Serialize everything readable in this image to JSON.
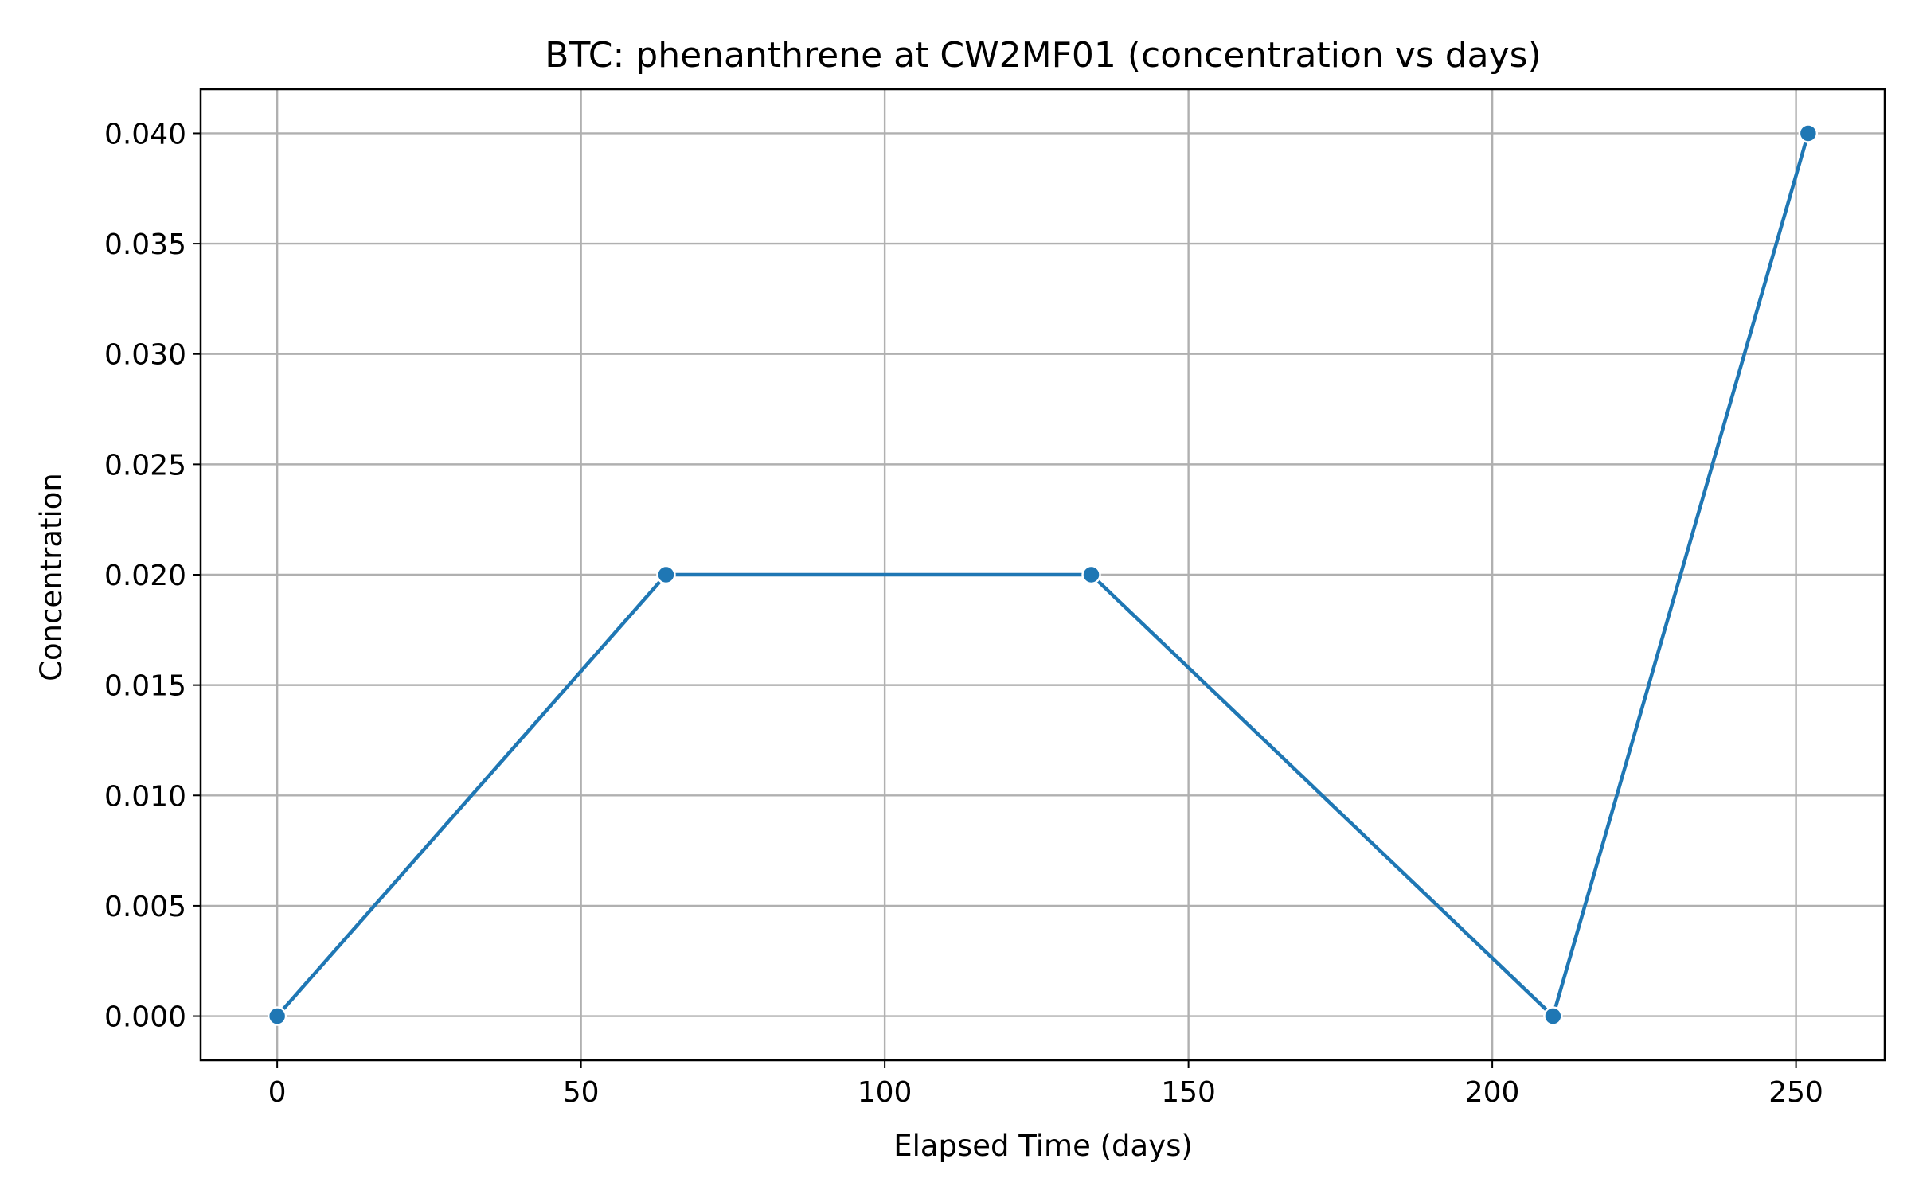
{
  "chart_data": {
    "type": "line",
    "title": "BTC: phenanthrene at CW2MF01 (concentration vs days)",
    "xlabel": "Elapsed Time (days)",
    "ylabel": "Concentration",
    "xlim": [
      -12.6,
      264.6
    ],
    "ylim": [
      -0.002,
      0.042
    ],
    "xticks": [
      0,
      50,
      100,
      150,
      200,
      250
    ],
    "xtick_labels": [
      "0",
      "50",
      "100",
      "150",
      "200",
      "250"
    ],
    "yticks": [
      0.0,
      0.005,
      0.01,
      0.015,
      0.02,
      0.025,
      0.03,
      0.035,
      0.04
    ],
    "ytick_labels": [
      "0.000",
      "0.005",
      "0.010",
      "0.015",
      "0.020",
      "0.025",
      "0.030",
      "0.035",
      "0.040"
    ],
    "grid": true,
    "legend": "none",
    "series": [
      {
        "color": "#1f77b4",
        "marker": "circle",
        "x": [
          0,
          64,
          134,
          210,
          252
        ],
        "y": [
          0.0,
          0.02,
          0.02,
          0.0,
          0.04
        ]
      }
    ]
  }
}
